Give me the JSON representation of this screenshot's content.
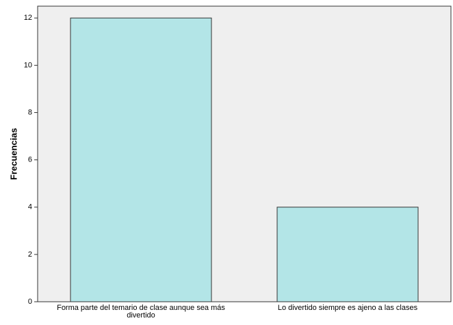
{
  "chart_data": {
    "type": "bar",
    "categories": [
      "Forma parte del temario de clase aunque sea más divertido",
      "Lo divertido siempre es ajeno a las clases"
    ],
    "category_lines": [
      [
        "Forma parte del temario de clase aunque sea más",
        "divertido"
      ],
      [
        "Lo divertido siempre es ajeno a las clases"
      ]
    ],
    "values": [
      12,
      4
    ],
    "xlabel": "",
    "ylabel": "Frecuencias",
    "ylim": [
      0,
      12.5
    ],
    "yticks": [
      0,
      2,
      4,
      6,
      8,
      10,
      12
    ],
    "grid": false,
    "colors": {
      "plot_background": "#efefef",
      "bar_fill": "#b3e5e7",
      "bar_stroke": "#333333",
      "axis": "#333333"
    }
  }
}
